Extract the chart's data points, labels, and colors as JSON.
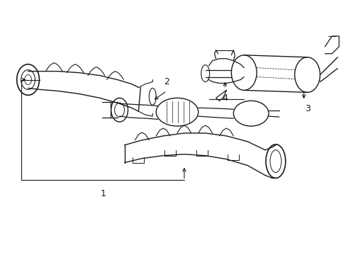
{
  "background_color": "#ffffff",
  "line_color": "#1a1a1a",
  "line_width": 0.8,
  "fig_width": 4.89,
  "fig_height": 3.6,
  "dpi": 100,
  "label1": "1",
  "label2": "2",
  "label3": "3",
  "label4": "4",
  "label_fontsize": 9
}
